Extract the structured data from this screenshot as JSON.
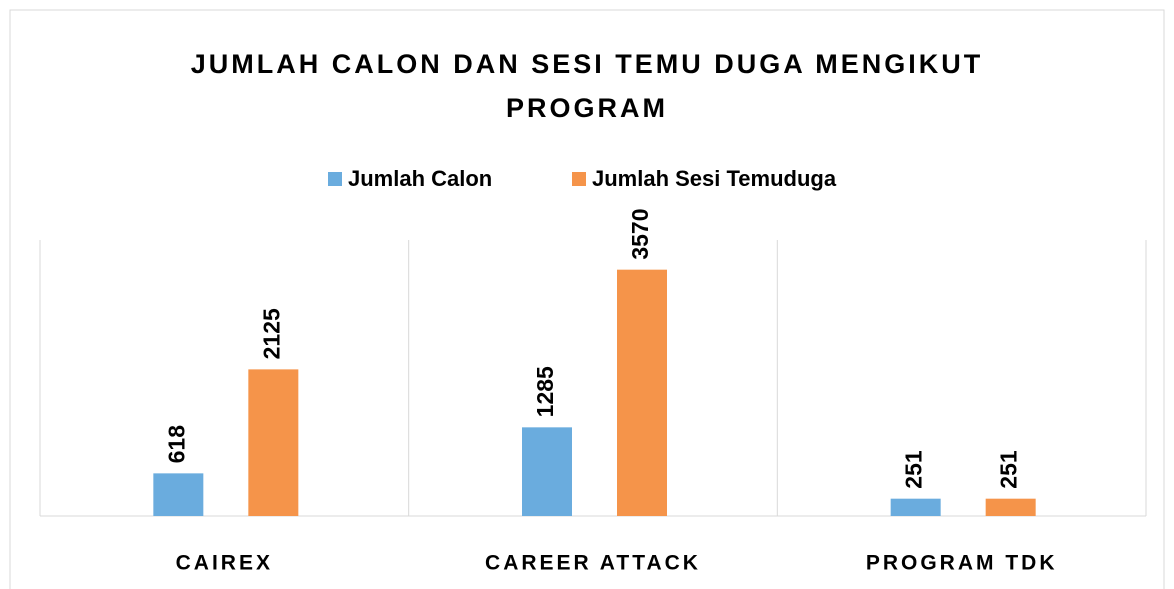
{
  "chart_data": {
    "type": "bar",
    "title": "JUMLAH CALON DAN SESI TEMU DUGA MENGIKUT PROGRAM",
    "categories": [
      "CAIREX",
      "CAREER ATTACK",
      "PROGRAM TDK"
    ],
    "series": [
      {
        "name": "Jumlah Calon",
        "color": "#6aacde",
        "values": [
          618,
          1285,
          251
        ]
      },
      {
        "name": "Jumlah Sesi Temuduga",
        "color": "#f5944a",
        "values": [
          2125,
          3570,
          251
        ]
      }
    ],
    "ylim": [
      0,
      4000
    ],
    "legend": "top"
  }
}
